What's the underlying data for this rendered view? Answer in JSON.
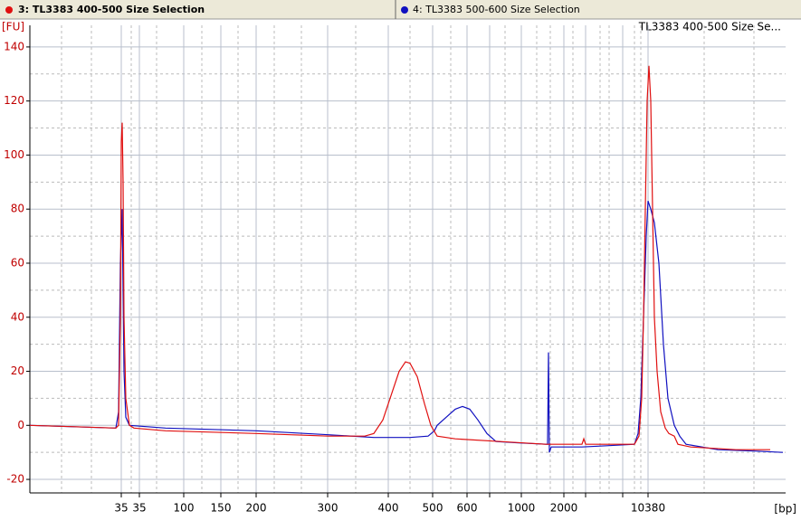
{
  "chart_data": {
    "type": "line",
    "title": "TL3383 400-500 Size Se...",
    "ylabel": "[FU]",
    "xlabel": "[bp]",
    "xlim": [
      0,
      835
    ],
    "ylim": [
      -25,
      148
    ],
    "yticks": [
      -20,
      0,
      20,
      40,
      60,
      80,
      100,
      120,
      140
    ],
    "yminor": [
      -10,
      10,
      30,
      50,
      70,
      90,
      110,
      130
    ],
    "xticks": [
      {
        "value": 101,
        "label": "35"
      },
      {
        "value": 121,
        "label": "35"
      },
      {
        "value": 170,
        "label": "100"
      },
      {
        "value": 211,
        "label": "150"
      },
      {
        "value": 250,
        "label": "200"
      },
      {
        "value": 329,
        "label": "300"
      },
      {
        "value": 396,
        "label": "400"
      },
      {
        "value": 445,
        "label": "500"
      },
      {
        "value": 483,
        "label": "600"
      },
      {
        "value": 543,
        "label": "1000"
      },
      {
        "value": 590,
        "label": "2000"
      },
      {
        "value": 683,
        "label": "10380"
      }
    ],
    "xmajor": [
      508,
      614,
      655
    ],
    "xminor": [
      35,
      68,
      112,
      140,
      190,
      230,
      270,
      300,
      360,
      420,
      465,
      525,
      560,
      575,
      600,
      630,
      640,
      668,
      675,
      745,
      800
    ],
    "grid": true,
    "series": [
      {
        "name": "3: TL3383 400-500 Size Selection",
        "color": "#e01010",
        "x": [
          0,
          50,
          95,
          98,
          100,
          101,
          102,
          103,
          104,
          106,
          110,
          115,
          150,
          250,
          330,
          370,
          380,
          390,
          400,
          408,
          415,
          420,
          428,
          436,
          443,
          450,
          470,
          520,
          570,
          610,
          612,
          614,
          640,
          668,
          673,
          676,
          678,
          680,
          682,
          684,
          686,
          688,
          690,
          693,
          697,
          702,
          706,
          712,
          716,
          730,
          780,
          818
        ],
        "values": [
          0,
          -0.5,
          -1,
          0,
          40,
          105,
          112,
          90,
          40,
          10,
          0,
          -1,
          -2,
          -3,
          -4,
          -4,
          -3,
          2,
          12,
          20,
          23.5,
          23,
          18,
          8,
          0,
          -4,
          -5,
          -6,
          -7,
          -7,
          -5,
          -7,
          -7,
          -7,
          -4,
          10,
          40,
          80,
          120,
          133,
          120,
          80,
          40,
          20,
          5,
          -1,
          -3,
          -4,
          -7,
          -8,
          -9,
          -9
        ]
      },
      {
        "name": "4: TL3383 500-600 Size Selection",
        "color": "#1010c0",
        "x": [
          0,
          95,
          98,
          100,
          102,
          103,
          104,
          106,
          110,
          150,
          250,
          330,
          380,
          420,
          440,
          447,
          450,
          460,
          470,
          478,
          486,
          495,
          505,
          515,
          540,
          572,
          573,
          574,
          576,
          610,
          640,
          668,
          672,
          675,
          678,
          681,
          683,
          686,
          690,
          695,
          700,
          705,
          712,
          718,
          725,
          760,
          800,
          832
        ],
        "values": [
          0,
          -1,
          5,
          60,
          80,
          50,
          20,
          3,
          0,
          -1,
          -2,
          -3.5,
          -4.5,
          -4.5,
          -4,
          -2,
          0,
          3,
          6,
          7,
          6,
          2,
          -3,
          -6,
          -6.5,
          -7,
          27,
          -10,
          -8,
          -8,
          -7.5,
          -7,
          -3,
          10,
          40,
          70,
          83,
          80,
          75,
          60,
          30,
          10,
          0,
          -4,
          -7,
          -9,
          -9.5,
          -10
        ]
      }
    ]
  }
}
